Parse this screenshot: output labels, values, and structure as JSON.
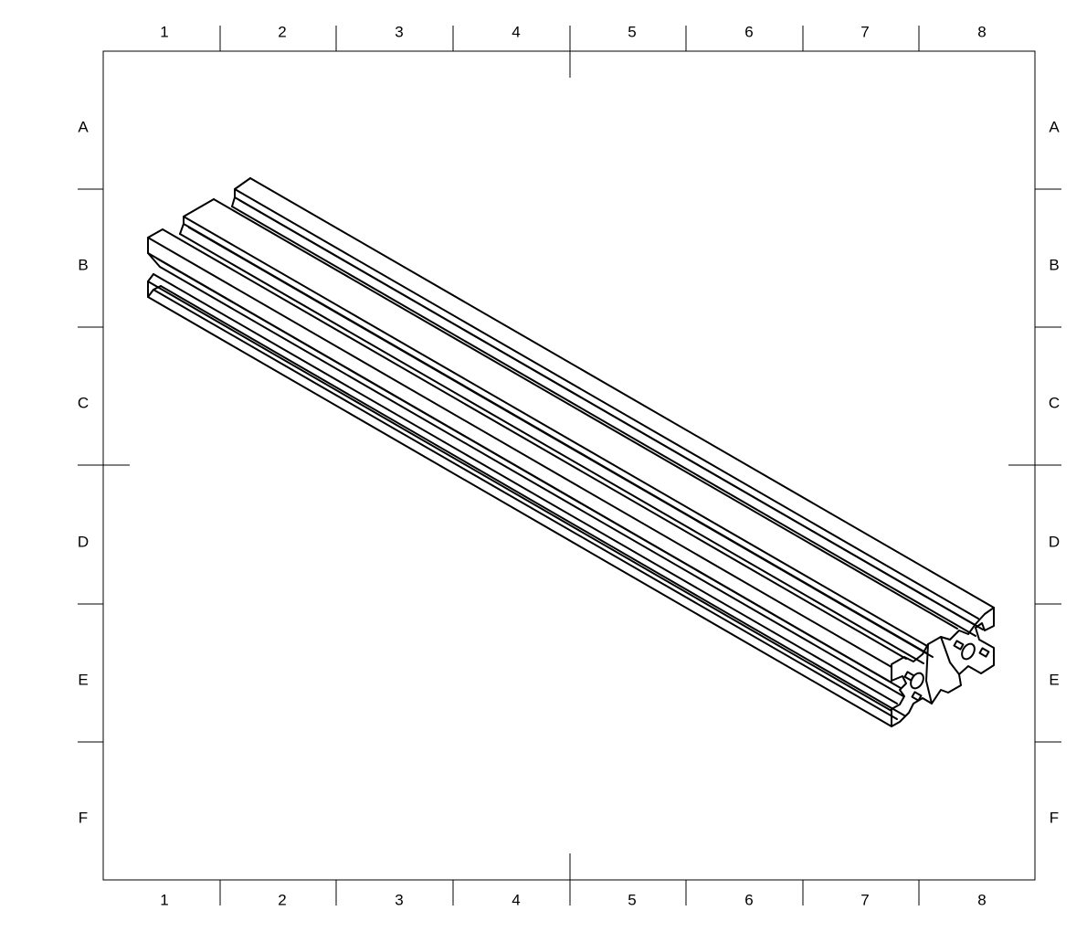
{
  "drawing": {
    "columns": [
      "1",
      "2",
      "3",
      "4",
      "5",
      "6",
      "7",
      "8"
    ],
    "rows": [
      "A",
      "B",
      "C",
      "D",
      "E",
      "F"
    ],
    "line_color": "#000000",
    "background": "#ffffff",
    "subject": "extruded aluminium slot profile, isometric view"
  }
}
